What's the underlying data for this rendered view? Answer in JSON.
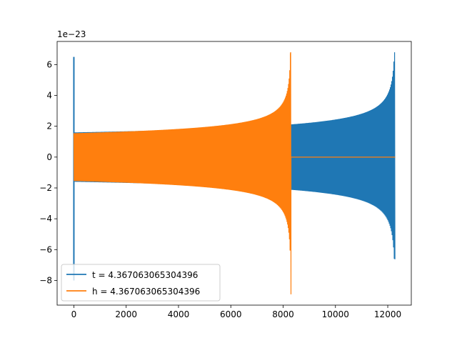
{
  "chart_data": {
    "type": "line",
    "title": "",
    "xlabel": "",
    "ylabel": "",
    "y_offset_label": "1e−23",
    "xlim": [
      -640,
      12900
    ],
    "ylim": [
      -9.6,
      7.5
    ],
    "x_ticks": [
      0,
      2000,
      4000,
      6000,
      8000,
      10000,
      12000
    ],
    "x_tick_labels": [
      "0",
      "2000",
      "4000",
      "6000",
      "8000",
      "10000",
      "12000"
    ],
    "y_ticks": [
      6,
      4,
      2,
      0,
      -2,
      -4,
      -6,
      -8
    ],
    "y_tick_labels": [
      "6",
      "4",
      "2",
      "0",
      "−2",
      "−4",
      "−6",
      "−8"
    ],
    "grid": false,
    "legend_position": "lower-left",
    "series": [
      {
        "name": "t = 4.367063065304396",
        "color": "#1f77b4",
        "waveform": "inspiral-chirp",
        "x_start": 0,
        "x_end": 12288,
        "envelope_start": 1.6,
        "envelope_at_8300": 1.85,
        "peak_max": 6.8,
        "peak_min": -6.6,
        "spike_at_x0": [
          6.5,
          -8.0
        ]
      },
      {
        "name": "h = 4.367063065304396",
        "color": "#ff7f0e",
        "waveform": "inspiral-chirp",
        "x_start": 0,
        "x_end": 8300,
        "envelope_start": 1.55,
        "peak_max": 6.8,
        "peak_min": -8.9,
        "zero_after": [
          8300,
          12288
        ]
      }
    ]
  }
}
